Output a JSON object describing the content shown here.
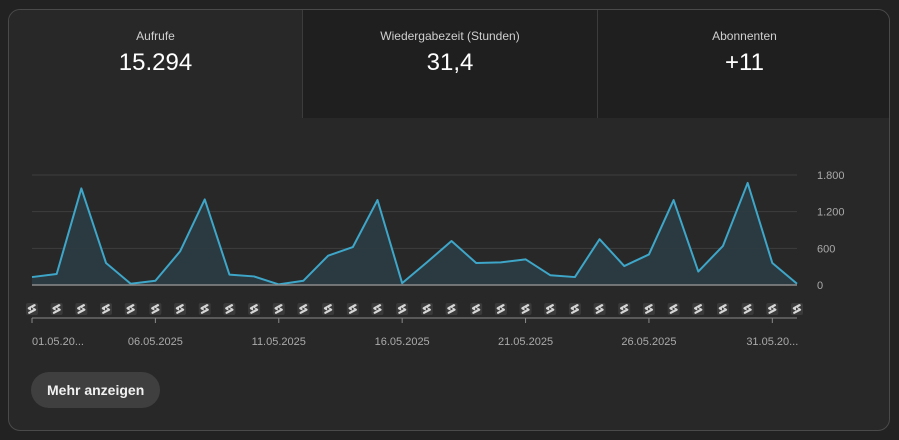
{
  "tabs": [
    {
      "label": "Aufrufe",
      "value": "15.294",
      "selected": true
    },
    {
      "label": "Wiedergabezeit (Stunden)",
      "value": "31,4",
      "selected": false
    },
    {
      "label": "Abonnenten",
      "value": "+11",
      "selected": false
    }
  ],
  "more_button": {
    "label": "Mehr anzeigen"
  },
  "colors": {
    "line": "#3ea6c8",
    "area": "#2b3c44",
    "grid": "#3e3e3e",
    "axis": "#8a8a8a",
    "text": "#aaaaaa"
  },
  "chart_data": {
    "type": "area",
    "x": [
      "01.05.2025",
      "02.05.2025",
      "03.05.2025",
      "04.05.2025",
      "05.05.2025",
      "06.05.2025",
      "07.05.2025",
      "08.05.2025",
      "09.05.2025",
      "10.05.2025",
      "11.05.2025",
      "12.05.2025",
      "13.05.2025",
      "14.05.2025",
      "15.05.2025",
      "16.05.2025",
      "17.05.2025",
      "18.05.2025",
      "19.05.2025",
      "20.05.2025",
      "21.05.2025",
      "22.05.2025",
      "23.05.2025",
      "24.05.2025",
      "25.05.2025",
      "26.05.2025",
      "27.05.2025",
      "28.05.2025",
      "29.05.2025",
      "30.05.2025",
      "31.05.2025",
      "01.06.2025"
    ],
    "values": [
      130,
      180,
      1580,
      360,
      20,
      70,
      550,
      1400,
      170,
      140,
      10,
      70,
      480,
      620,
      1390,
      30,
      370,
      720,
      360,
      370,
      420,
      160,
      130,
      750,
      310,
      500,
      1390,
      220,
      640,
      1670,
      360,
      20
    ],
    "x_tick_labels": [
      {
        "index": 0,
        "label": "01.05.20..."
      },
      {
        "index": 5,
        "label": "06.05.2025"
      },
      {
        "index": 10,
        "label": "11.05.2025"
      },
      {
        "index": 15,
        "label": "16.05.2025"
      },
      {
        "index": 20,
        "label": "21.05.2025"
      },
      {
        "index": 25,
        "label": "26.05.2025"
      },
      {
        "index": 30,
        "label": "31.05.20..."
      }
    ],
    "y_ticks": [
      0,
      600,
      1200,
      1800
    ],
    "y_tick_labels": [
      "0",
      "600",
      "1.200",
      "1.800"
    ],
    "ylim": [
      0,
      1800
    ],
    "grid": true,
    "title": "",
    "xlabel": "",
    "ylabel": "",
    "marker_icon": "shorts-icon"
  }
}
